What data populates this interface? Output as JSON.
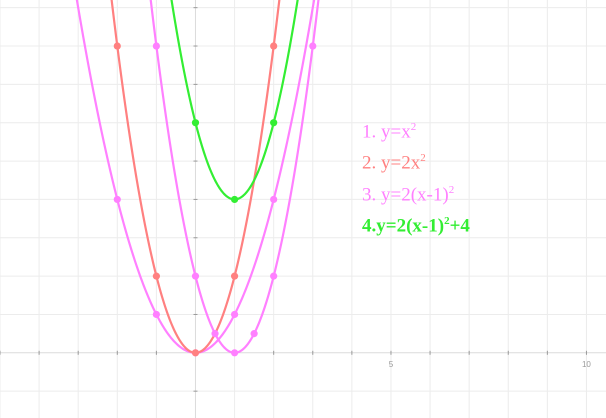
{
  "chart_data": {
    "type": "line",
    "title": "",
    "xlabel": "",
    "ylabel": "",
    "xlim": [
      -5,
      10.5
    ],
    "ylim": [
      -1.7,
      9.2
    ],
    "grid": true,
    "legend_position": "right",
    "x_tick_labels": [
      {
        "x": 5,
        "label": "5"
      },
      {
        "x": 10,
        "label": "10"
      }
    ],
    "series": [
      {
        "name": "1. y=x²",
        "color": "#ff80ff",
        "expr": {
          "a": 1,
          "h": 0,
          "k": 0
        },
        "points": [
          {
            "x": -2,
            "y": 4
          },
          {
            "x": -1,
            "y": 1
          },
          {
            "x": 0,
            "y": 0
          },
          {
            "x": 1,
            "y": 1
          },
          {
            "x": 2,
            "y": 4
          }
        ]
      },
      {
        "name": "2. y=2x²",
        "color": "#ff8080",
        "expr": {
          "a": 2,
          "h": 0,
          "k": 0
        },
        "points": [
          {
            "x": -2,
            "y": 8
          },
          {
            "x": -1,
            "y": 2
          },
          {
            "x": 0,
            "y": 0
          },
          {
            "x": 1,
            "y": 2
          },
          {
            "x": 2,
            "y": 8
          }
        ]
      },
      {
        "name": "3. y=2(x-1)²",
        "color": "#ff80ff",
        "expr": {
          "a": 2,
          "h": 1,
          "k": 0
        },
        "points": [
          {
            "x": -1,
            "y": 8
          },
          {
            "x": 0,
            "y": 2
          },
          {
            "x": 0.5,
            "y": 0.5
          },
          {
            "x": 1,
            "y": 0
          },
          {
            "x": 1.5,
            "y": 0.5
          },
          {
            "x": 2,
            "y": 2
          },
          {
            "x": 3,
            "y": 8
          }
        ]
      },
      {
        "name": "4.y=2(x-1)²+4",
        "color": "#33ee33",
        "expr": {
          "a": 2,
          "h": 1,
          "k": 4
        },
        "points": [
          {
            "x": 0,
            "y": 6
          },
          {
            "x": 1,
            "y": 4
          },
          {
            "x": 2,
            "y": 6
          }
        ]
      }
    ]
  },
  "legend": {
    "items": [
      {
        "prefix": "1. y=x",
        "sup": "2",
        "suffix": "",
        "color": "#ff80ff",
        "bold": false
      },
      {
        "prefix": "2. y=2x",
        "sup": "2",
        "suffix": "",
        "color": "#ff8080",
        "bold": false
      },
      {
        "prefix": "3. y=2(x-1)",
        "sup": "2",
        "suffix": "",
        "color": "#ff80ff",
        "bold": false
      },
      {
        "prefix": "4.y=2(x-1)",
        "sup": "2",
        "suffix": "+4",
        "color": "#33ee33",
        "bold": true
      }
    ]
  }
}
